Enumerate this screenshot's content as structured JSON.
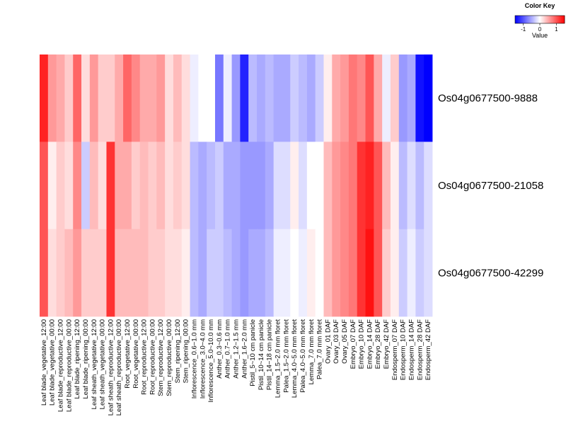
{
  "chart_data": {
    "type": "heatmap",
    "color_key": {
      "title": "Color Key",
      "label": "Value",
      "ticks": [
        -1,
        0,
        1
      ],
      "range": [
        -1.5,
        1.5
      ],
      "low_color": "#0000ff",
      "mid_color": "#ffffff",
      "high_color": "#ff0000"
    },
    "rows": [
      "Os04g0677500-9888",
      "Os04g0677500-21058",
      "Os04g0677500-42299"
    ],
    "columns": [
      "Leaf blade_vegetative_12:00",
      "Leaf blade_vegetative_00:00",
      "Leaf blade_reproductive_12:00",
      "Leaf blade_reproductive_00:00",
      "Leaf blade_ripening_12:00",
      "Leaf blade_ripening_00:00",
      "Leaf sheath_vegetative_12:00",
      "Leaf sheath_vegetative_00:00",
      "Leaf sheath_reproductive_12:00",
      "Leaf sheath_reproductive_00:00",
      "Root_vegetative_12:00",
      "Root_vegetative_00:00",
      "Root_reproductive_12:00",
      "Root_reproductive_00:00",
      "Stem_reproductive_12:00",
      "Stem_reproductive_00:00",
      "Stem_ripening_12:00",
      "Stem_ripening_00:00",
      "Inflorescence_0.6~1.0 mm",
      "Inflorescence_3.0~4.0 mm",
      "Inflorescence_5.0~10.0 mm",
      "Anther_0.3~0.6 mm",
      "Anther_0.7~1.0 mm",
      "Anther_1.2~1.5 mm",
      "Anther_1.6~2.0 mm",
      "Pistil_5~10 cm panicle",
      "Pistil_10~14 cm panicle",
      "Pistil_14~18 cm panicle",
      "Lemma_1.5~2.0 mm floret",
      "Palea_1.5~2.0 mm floret",
      "Lemma_4.0~5.0 mm floret",
      "Palea_4.0~5.0 mm floret",
      "Lemma_7.0 mm floret",
      "Palea_7.0 mm floret",
      "Ovary_01 DAF",
      "Ovary_03 DAF",
      "Ovary_05 DAF",
      "Embryo_07 DAF",
      "Embryo_10 DAF",
      "Embryo_14 DAF",
      "Embryo_28 DAF",
      "Embryo_42 DAF",
      "Endosperm_07 DAF",
      "Endosperm_10 DAF",
      "Endosperm_14 DAF",
      "Endosperm_28 DAF",
      "Endosperm_42 DAF"
    ],
    "values": [
      [
        1.3,
        0.6,
        0.5,
        0.3,
        0.9,
        0.2,
        0.6,
        0.3,
        0.3,
        0.5,
        0.9,
        0.7,
        0.5,
        0.5,
        0.6,
        0.2,
        0.4,
        0.2,
        -0.1,
        0.0,
        0.0,
        -0.8,
        -0.1,
        -0.6,
        -1.3,
        -0.4,
        -0.5,
        -0.4,
        -0.5,
        -0.5,
        -0.3,
        -0.4,
        -0.5,
        -0.3,
        0.1,
        0.5,
        0.6,
        0.8,
        0.7,
        1.0,
        0.5,
        -0.1,
        0.3,
        -0.6,
        -0.5,
        -1.4,
        -1.5
      ],
      [
        1.0,
        0.1,
        0.3,
        0.2,
        0.7,
        -0.3,
        0.4,
        0.2,
        1.2,
        0.5,
        0.5,
        0.3,
        0.4,
        0.3,
        0.4,
        0.2,
        0.3,
        0.2,
        -0.4,
        -0.5,
        -0.4,
        -0.3,
        -0.5,
        -0.5,
        -0.6,
        -0.6,
        -0.6,
        -0.5,
        -0.2,
        -0.2,
        0.1,
        -0.2,
        0.0,
        0.0,
        0.4,
        0.6,
        0.7,
        0.8,
        1.2,
        1.3,
        1.0,
        0.4,
        0.1,
        -0.4,
        -0.2,
        -0.4,
        -0.2
      ],
      [
        1.0,
        0.2,
        0.3,
        0.4,
        0.6,
        0.3,
        0.3,
        0.3,
        1.2,
        0.4,
        0.4,
        0.4,
        0.4,
        0.3,
        0.3,
        0.2,
        0.2,
        0.1,
        -0.4,
        -0.5,
        -0.3,
        -0.3,
        -0.4,
        -0.5,
        -0.6,
        -0.5,
        -0.5,
        -0.4,
        -0.1,
        -0.1,
        0.0,
        -0.1,
        0.1,
        0.0,
        0.4,
        0.6,
        0.7,
        0.8,
        1.2,
        1.4,
        1.0,
        0.3,
        0.1,
        -0.3,
        -0.1,
        -0.3,
        -0.2
      ]
    ]
  }
}
